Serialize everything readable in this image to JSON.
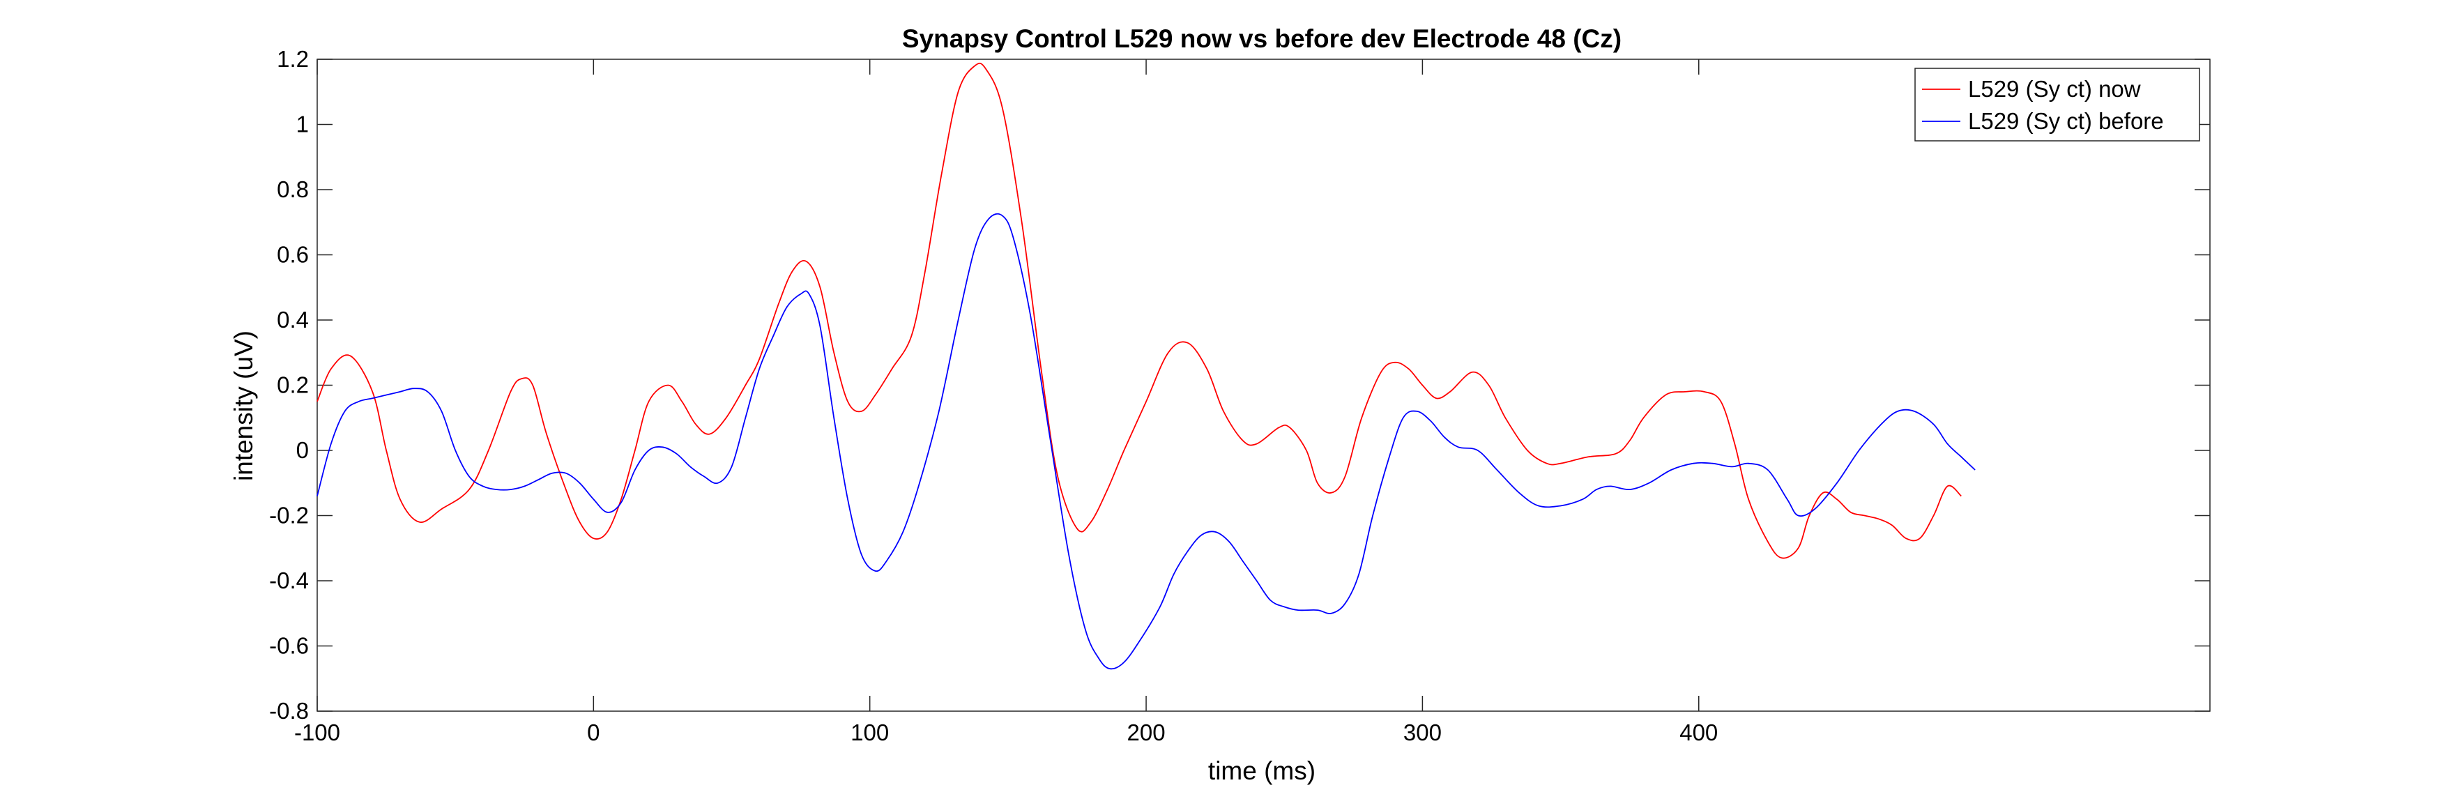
{
  "chart_data": {
    "type": "line",
    "title": "Synapsy Control L529 now vs before dev Electrode 48 (Cz)",
    "xlabel": "time (ms)",
    "ylabel": "intensity (uV)",
    "xlim": [
      -100,
      585
    ],
    "ylim": [
      -0.8,
      1.2
    ],
    "xticks": [
      -100,
      0,
      100,
      200,
      300,
      400
    ],
    "xtick_labels": [
      "-100",
      "0",
      "100",
      "200",
      "300",
      "400"
    ],
    "yticks": [
      -0.8,
      -0.6,
      -0.4,
      -0.2,
      0,
      0.2,
      0.4,
      0.6,
      0.8,
      1,
      1.2
    ],
    "ytick_labels": [
      "-0.8",
      "-0.6",
      "-0.4",
      "-0.2",
      "0",
      "0.2",
      "0.4",
      "0.6",
      "0.8",
      "1",
      "1.2"
    ],
    "grid": false,
    "legend_position": "top-right",
    "series": [
      {
        "name": "L529 (Sy ct) now",
        "color": "#ff0000",
        "x": [
          -100,
          -95,
          -88,
          -80,
          -75,
          -70,
          -63,
          -55,
          -45,
          -38,
          -30,
          -26,
          -22,
          -17,
          -10,
          -5,
          0,
          5,
          10,
          15,
          20,
          27,
          32,
          37,
          42,
          48,
          55,
          60,
          67,
          72,
          77,
          82,
          87,
          92,
          97,
          102,
          108,
          115,
          120,
          126,
          132,
          138,
          142,
          148,
          155,
          162,
          168,
          175,
          180,
          186,
          192,
          200,
          208,
          215,
          222,
          228,
          235,
          240,
          248,
          252,
          258,
          262,
          267,
          272,
          278,
          285,
          290,
          295,
          300,
          305,
          310,
          318,
          324,
          330,
          338,
          345,
          350,
          360,
          370,
          375,
          380,
          388,
          395,
          402,
          408,
          413,
          418,
          425,
          430,
          436,
          440,
          445,
          450,
          455,
          460,
          465,
          470,
          475,
          480,
          485,
          490,
          495
        ],
        "y": [
          0.15,
          0.25,
          0.29,
          0.18,
          0.0,
          -0.15,
          -0.22,
          -0.18,
          -0.12,
          0.0,
          0.18,
          0.22,
          0.2,
          0.05,
          -0.12,
          -0.22,
          -0.27,
          -0.25,
          -0.15,
          0.0,
          0.15,
          0.2,
          0.15,
          0.08,
          0.05,
          0.1,
          0.2,
          0.28,
          0.45,
          0.55,
          0.58,
          0.5,
          0.3,
          0.15,
          0.12,
          0.17,
          0.25,
          0.35,
          0.55,
          0.85,
          1.1,
          1.18,
          1.17,
          1.05,
          0.7,
          0.25,
          -0.08,
          -0.24,
          -0.22,
          -0.12,
          0.0,
          0.15,
          0.3,
          0.33,
          0.25,
          0.12,
          0.03,
          0.02,
          0.07,
          0.07,
          0.0,
          -0.1,
          -0.13,
          -0.08,
          0.1,
          0.24,
          0.27,
          0.25,
          0.2,
          0.16,
          0.18,
          0.24,
          0.2,
          0.1,
          0.0,
          -0.04,
          -0.04,
          -0.02,
          -0.01,
          0.03,
          0.1,
          0.17,
          0.18,
          0.18,
          0.15,
          0.02,
          -0.15,
          -0.28,
          -0.33,
          -0.3,
          -0.2,
          -0.13,
          -0.15,
          -0.19,
          -0.2,
          -0.21,
          -0.23,
          -0.27,
          -0.27,
          -0.2,
          -0.11,
          -0.14
        ]
      },
      {
        "name": "L529 (Sy ct) before",
        "color": "#0000ff",
        "x": [
          -100,
          -95,
          -90,
          -85,
          -80,
          -75,
          -70,
          -65,
          -60,
          -55,
          -50,
          -45,
          -40,
          -35,
          -30,
          -25,
          -20,
          -15,
          -10,
          -5,
          0,
          5,
          10,
          15,
          20,
          25,
          30,
          35,
          40,
          45,
          50,
          55,
          60,
          65,
          70,
          75,
          78,
          82,
          87,
          92,
          97,
          102,
          106,
          112,
          118,
          125,
          132,
          138,
          143,
          148,
          152,
          158,
          165,
          172,
          178,
          183,
          187,
          192,
          198,
          205,
          210,
          215,
          220,
          225,
          230,
          235,
          240,
          245,
          250,
          255,
          262,
          267,
          272,
          277,
          282,
          288,
          293,
          298,
          303,
          308,
          313,
          320,
          327,
          335,
          342,
          350,
          358,
          363,
          368,
          375,
          382,
          390,
          398,
          405,
          412,
          418,
          425,
          432,
          436,
          442,
          450,
          458,
          466,
          472,
          478,
          485,
          490,
          495,
          500
        ],
        "y": [
          -0.14,
          0.02,
          0.12,
          0.15,
          0.16,
          0.17,
          0.18,
          0.19,
          0.18,
          0.12,
          0.0,
          -0.08,
          -0.11,
          -0.12,
          -0.12,
          -0.11,
          -0.09,
          -0.07,
          -0.07,
          -0.1,
          -0.15,
          -0.19,
          -0.16,
          -0.06,
          0.0,
          0.01,
          -0.01,
          -0.05,
          -0.08,
          -0.1,
          -0.05,
          0.1,
          0.25,
          0.35,
          0.44,
          0.48,
          0.48,
          0.38,
          0.1,
          -0.15,
          -0.32,
          -0.37,
          -0.34,
          -0.25,
          -0.1,
          0.12,
          0.4,
          0.62,
          0.71,
          0.72,
          0.65,
          0.42,
          0.05,
          -0.32,
          -0.55,
          -0.64,
          -0.67,
          -0.65,
          -0.58,
          -0.48,
          -0.38,
          -0.31,
          -0.26,
          -0.25,
          -0.28,
          -0.34,
          -0.4,
          -0.46,
          -0.48,
          -0.49,
          -0.49,
          -0.5,
          -0.47,
          -0.38,
          -0.2,
          -0.02,
          0.1,
          0.12,
          0.09,
          0.04,
          0.01,
          0.0,
          -0.06,
          -0.13,
          -0.17,
          -0.17,
          -0.15,
          -0.12,
          -0.11,
          -0.12,
          -0.1,
          -0.06,
          -0.04,
          -0.04,
          -0.05,
          -0.04,
          -0.06,
          -0.15,
          -0.2,
          -0.18,
          -0.1,
          0.0,
          0.08,
          0.12,
          0.12,
          0.08,
          0.02,
          -0.02,
          -0.06
        ]
      }
    ]
  }
}
